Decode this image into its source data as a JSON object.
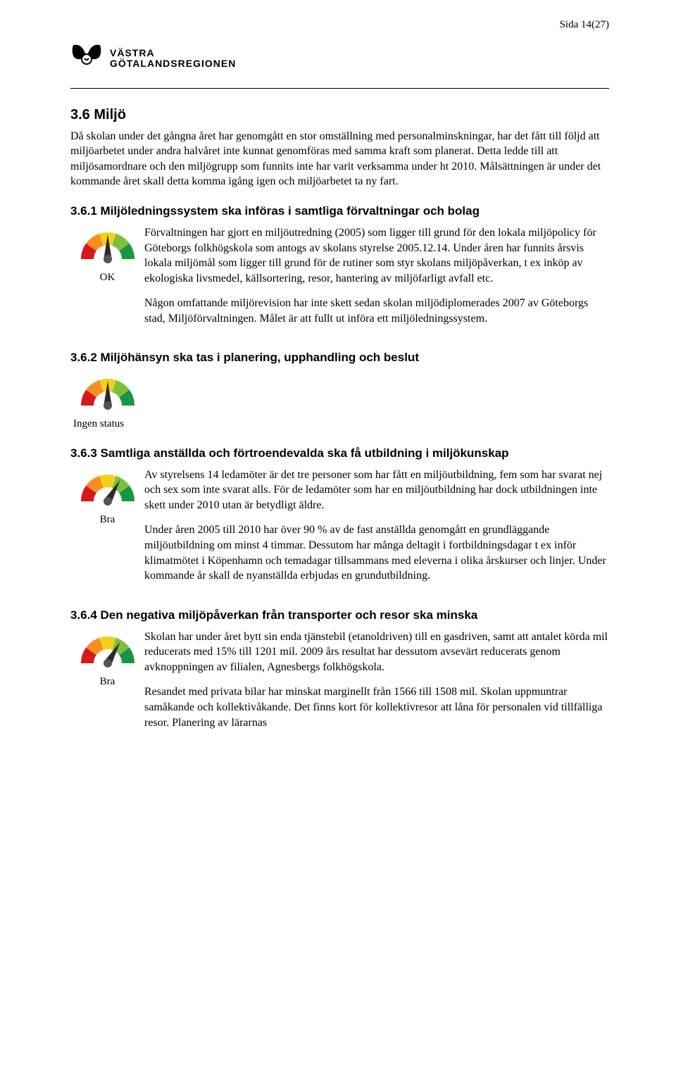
{
  "page_number": "Sida 14(27)",
  "logo": {
    "line1": "VÄSTRA",
    "line2": "GÖTALANDSREGIONEN"
  },
  "gauge": {
    "colors": [
      "#d7191c",
      "#f98e1f",
      "#f2d11b",
      "#7fbf3f",
      "#1a9641"
    ],
    "needle_color": "#2b2b2b",
    "center_color": "#555555"
  },
  "h_3_6": "3.6 Miljö",
  "p_3_6": "Då skolan under det gångna året har genomgått en stor omställning med personalminskningar, har det fått till följd att miljöarbetet under andra halvåret inte kunnat genomföras med samma kraft som planerat. Detta ledde till att miljösamordnare och den miljögrupp som funnits inte har varit verksamma under ht 2010. Målsättningen är under det kommande året skall detta komma igång igen och miljöarbetet ta ny fart.",
  "h_3_6_1": "3.6.1 Miljöledningssystem ska införas i samtliga förvaltningar och bolag",
  "g_3_6_1_label": "OK",
  "g_3_6_1_angle": 0,
  "p_3_6_1a": "Förvaltningen har gjort en miljöutredning (2005) som ligger till grund för den lokala miljöpolicy för Göteborgs folkhögskola som antogs av skolans styrelse 2005.12.14. Under åren har funnits årsvis lokala miljömål som ligger till grund för de rutiner som styr skolans miljöpåverkan, t ex inköp av ekologiska livsmedel, källsortering, resor, hantering av miljöfarligt avfall etc.",
  "p_3_6_1b": "Någon omfattande miljörevision har inte skett sedan skolan miljödiplomerades 2007 av Göteborgs stad, Miljöförvaltningen. Målet är att fullt ut införa ett miljöledningssystem.",
  "h_3_6_2": "3.6.2 Miljöhänsyn ska tas i planering, upphandling och beslut",
  "g_3_6_2_label": "Ingen status",
  "g_3_6_2_angle": 0,
  "h_3_6_3": "3.6.3 Samtliga anställda och förtroendevalda ska få utbildning i miljökunskap",
  "g_3_6_3_label": "Bra",
  "g_3_6_3_angle": 30,
  "p_3_6_3a": "Av styrelsens 14 ledamöter är det tre personer som har fått en miljöutbildning, fem som har svarat nej och sex som inte svarat alls. För de ledamöter som har en miljöutbildning har dock utbildningen inte skett under 2010 utan är betydligt äldre.",
  "p_3_6_3b": "Under åren 2005 till 2010 har över 90 % av de fast anställda genomgått en grundläggande miljöutbildning om minst 4 timmar. Dessutom har många deltagit i fortbildningsdagar t ex inför klimatmötet i Köpenhamn och temadagar tillsammans med eleverna i olika årskurser och linjer. Under kommande år skall de nyanställda erbjudas en grundutbildning.",
  "h_3_6_4": "3.6.4 Den negativa miljöpåverkan från transporter och resor ska minska",
  "g_3_6_4_label": "Bra",
  "g_3_6_4_angle": 30,
  "p_3_6_4a": "Skolan har under året bytt sin enda tjänstebil (etanoldriven) till en gasdriven, samt att antalet körda mil reducerats med 15% till 1201 mil. 2009 års resultat har dessutom avsevärt reducerats genom avknoppningen av filialen, Agnesbergs folkhögskola.",
  "p_3_6_4b": "Resandet med privata bilar har minskat marginellt från 1566 till 1508 mil. Skolan uppmuntrar samåkande och kollektivåkande. Det finns kort för kollektivresor att låna för personalen vid tillfälliga resor. Planering av lärarnas"
}
